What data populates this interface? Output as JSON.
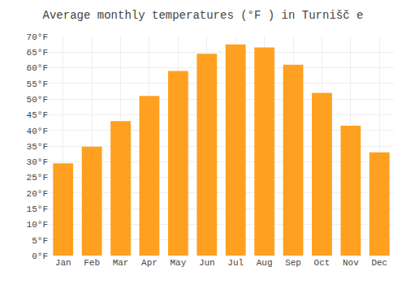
{
  "chart_data": {
    "type": "bar",
    "title": "Average monthly temperatures (°F ) in Turnišč e",
    "categories": [
      "Jan",
      "Feb",
      "Mar",
      "Apr",
      "May",
      "Jun",
      "Jul",
      "Aug",
      "Sep",
      "Oct",
      "Nov",
      "Dec"
    ],
    "values": [
      29.5,
      34.8,
      43.0,
      51.0,
      59.0,
      64.5,
      67.5,
      66.5,
      61.0,
      52.0,
      41.5,
      33.0
    ],
    "color": "#FFA020",
    "ylim": [
      0,
      70
    ],
    "yticks": [
      {
        "value": 0,
        "label": "0°F"
      },
      {
        "value": 5,
        "label": "5°F"
      },
      {
        "value": 10,
        "label": "10°F"
      },
      {
        "value": 15,
        "label": "15°F"
      },
      {
        "value": 20,
        "label": "20°F"
      },
      {
        "value": 25,
        "label": "25°F"
      },
      {
        "value": 30,
        "label": "30°F"
      },
      {
        "value": 35,
        "label": "35°F"
      },
      {
        "value": 40,
        "label": "40°F"
      },
      {
        "value": 45,
        "label": "45°F"
      },
      {
        "value": 50,
        "label": "50°F"
      },
      {
        "value": 55,
        "label": "55°F"
      },
      {
        "value": 60,
        "label": "60°F"
      },
      {
        "value": 65,
        "label": "65°F"
      },
      {
        "value": 70,
        "label": "70°F"
      }
    ],
    "grid": true
  }
}
